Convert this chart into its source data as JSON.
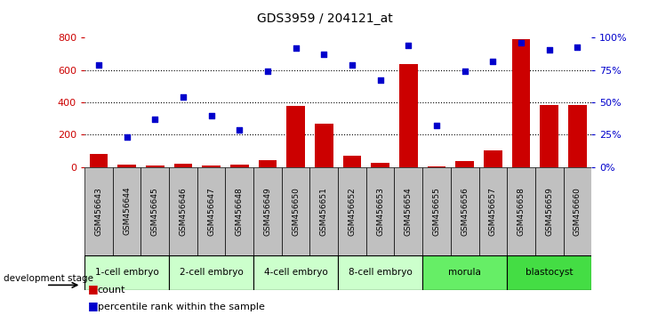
{
  "title": "GDS3959 / 204121_at",
  "samples": [
    "GSM456643",
    "GSM456644",
    "GSM456645",
    "GSM456646",
    "GSM456647",
    "GSM456648",
    "GSM456649",
    "GSM456650",
    "GSM456651",
    "GSM456652",
    "GSM456653",
    "GSM456654",
    "GSM456655",
    "GSM456656",
    "GSM456657",
    "GSM456658",
    "GSM456659",
    "GSM456660"
  ],
  "counts": [
    80,
    15,
    10,
    20,
    10,
    15,
    40,
    380,
    270,
    70,
    25,
    640,
    5,
    35,
    105,
    790,
    385,
    385
  ],
  "percentiles": [
    79,
    23,
    37,
    54,
    40,
    29,
    74,
    92,
    87,
    79,
    67,
    94,
    32,
    74,
    82,
    96,
    91,
    93
  ],
  "stages": [
    {
      "label": "1-cell embryo",
      "start": 0,
      "end": 3,
      "color": "#ccffcc"
    },
    {
      "label": "2-cell embryo",
      "start": 3,
      "end": 6,
      "color": "#ccffcc"
    },
    {
      "label": "4-cell embryo",
      "start": 6,
      "end": 9,
      "color": "#ccffcc"
    },
    {
      "label": "8-cell embryo",
      "start": 9,
      "end": 12,
      "color": "#ccffcc"
    },
    {
      "label": "morula",
      "start": 12,
      "end": 15,
      "color": "#66ee66"
    },
    {
      "label": "blastocyst",
      "start": 15,
      "end": 18,
      "color": "#44dd44"
    }
  ],
  "ylim_left": [
    0,
    800
  ],
  "ylim_right": [
    0,
    100
  ],
  "yticks_left": [
    0,
    200,
    400,
    600,
    800
  ],
  "yticks_right": [
    0,
    25,
    50,
    75,
    100
  ],
  "ytick_labels_right": [
    "0%",
    "25%",
    "50%",
    "75%",
    "100%"
  ],
  "bar_color": "#cc0000",
  "dot_color": "#0000cc",
  "grid_color": "#000000",
  "left_axis_color": "#cc0000",
  "right_axis_color": "#0000cc",
  "stage_bg_color": "#c0c0c0",
  "legend_count_label": "count",
  "legend_pct_label": "percentile rank within the sample"
}
